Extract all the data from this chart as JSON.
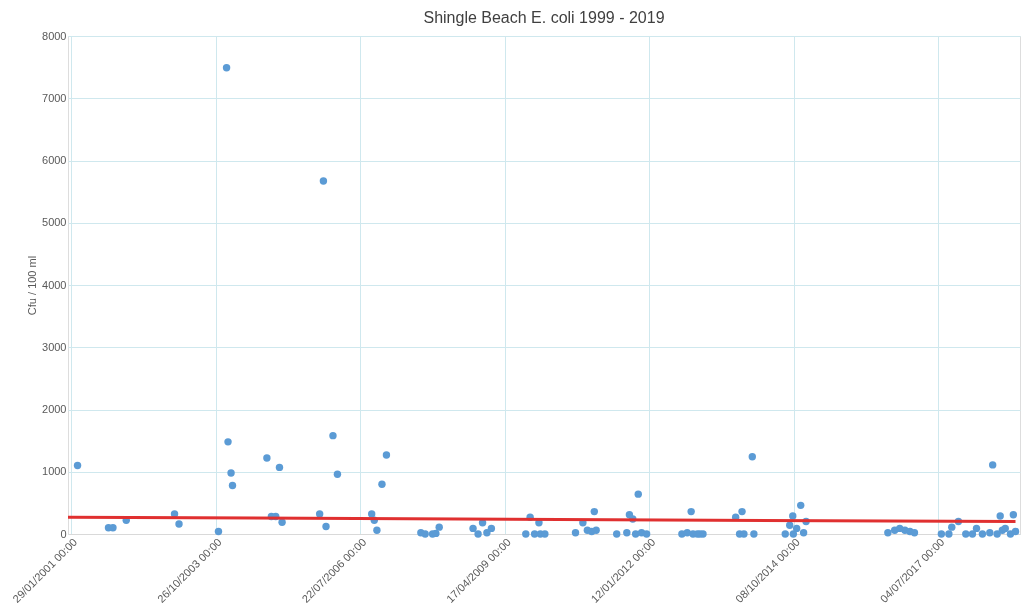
{
  "chart_data": {
    "type": "scatter",
    "title": "Shingle Beach E. coli 1999 - 2019",
    "ylabel": "Cfu / 100 ml",
    "xlim": [
      "2001-01-08",
      "2019-01-20"
    ],
    "xticks": [
      {
        "value": "2001-01-29",
        "label": "29/01/2001 00:00"
      },
      {
        "value": "2003-10-26",
        "label": "26/10/2003 00:00"
      },
      {
        "value": "2006-07-22",
        "label": "22/07/2006 00:00"
      },
      {
        "value": "2009-04-17",
        "label": "17/04/2009 00:00"
      },
      {
        "value": "2012-01-12",
        "label": "12/01/2012 00:00"
      },
      {
        "value": "2014-10-08",
        "label": "08/10/2014 00:00"
      },
      {
        "value": "2017-07-04",
        "label": "04/07/2017 00:00"
      }
    ],
    "ylim": [
      0,
      8000
    ],
    "yticks": [
      0,
      1000,
      2000,
      3000,
      4000,
      5000,
      6000,
      7000,
      8000
    ],
    "grid": true,
    "series": [
      {
        "type": "scatter",
        "color": "#5b9bd5",
        "marker": "circle",
        "x": [
          "2001-03-15",
          "2001-10-15",
          "2001-11-15",
          "2002-02-15",
          "2003-01-15",
          "2003-02-15",
          "2003-11-15",
          "2004-01-10",
          "2004-01-20",
          "2004-02-10",
          "2004-02-20",
          "2004-10-15",
          "2004-11-15",
          "2004-12-15",
          "2005-01-10",
          "2005-01-28",
          "2005-10-15",
          "2005-11-10",
          "2005-11-28",
          "2006-01-15",
          "2006-02-15",
          "2006-10-10",
          "2006-10-28",
          "2006-11-15",
          "2006-12-20",
          "2007-01-20",
          "2007-09-15",
          "2007-10-15",
          "2007-12-05",
          "2007-12-28",
          "2008-01-20",
          "2008-09-10",
          "2008-10-15",
          "2008-11-15",
          "2008-12-15",
          "2009-01-15",
          "2009-09-10",
          "2009-10-10",
          "2009-11-10",
          "2009-12-10",
          "2009-12-20",
          "2010-01-20",
          "2010-08-20",
          "2010-10-10",
          "2010-11-10",
          "2010-12-10",
          "2010-12-28",
          "2011-01-10",
          "2011-06-01",
          "2011-08-10",
          "2011-08-28",
          "2011-09-20",
          "2011-10-10",
          "2011-10-28",
          "2011-11-20",
          "2011-12-25",
          "2012-08-25",
          "2012-10-01",
          "2012-10-28",
          "2012-11-10",
          "2012-12-10",
          "2012-12-28",
          "2013-01-18",
          "2013-09-01",
          "2013-09-28",
          "2013-10-15",
          "2013-10-28",
          "2013-12-25",
          "2014-01-05",
          "2014-08-10",
          "2014-09-10",
          "2014-10-01",
          "2014-10-05",
          "2014-10-28",
          "2014-11-25",
          "2014-12-15",
          "2015-01-01",
          "2016-07-20",
          "2016-09-05",
          "2016-10-10",
          "2016-11-15",
          "2016-12-20",
          "2017-01-20",
          "2017-07-25",
          "2017-09-15",
          "2017-10-05",
          "2017-11-20",
          "2018-01-10",
          "2018-02-25",
          "2018-03-25",
          "2018-05-05",
          "2018-06-25",
          "2018-07-15",
          "2018-08-15",
          "2018-09-05",
          "2018-09-20",
          "2018-10-10",
          "2018-11-15",
          "2018-12-05",
          "2018-12-20"
        ],
        "values": [
          1100,
          100,
          100,
          220,
          320,
          160,
          40,
          7490,
          1480,
          980,
          780,
          1220,
          280,
          280,
          1070,
          190,
          320,
          5670,
          120,
          1580,
          960,
          320,
          220,
          60,
          800,
          1270,
          20,
          0,
          0,
          10,
          110,
          90,
          0,
          180,
          20,
          90,
          0,
          270,
          0,
          180,
          0,
          0,
          20,
          180,
          60,
          40,
          360,
          60,
          0,
          20,
          310,
          240,
          0,
          640,
          20,
          0,
          0,
          20,
          360,
          0,
          0,
          0,
          0,
          270,
          0,
          360,
          0,
          1240,
          0,
          0,
          140,
          290,
          0,
          90,
          460,
          20,
          200,
          20,
          60,
          90,
          60,
          40,
          20,
          0,
          0,
          110,
          200,
          0,
          0,
          90,
          0,
          20,
          1110,
          0,
          290,
          60,
          90,
          0,
          310,
          40
        ]
      },
      {
        "type": "line",
        "color": "#e03030",
        "x": [
          "2001-01-08",
          "2018-12-20"
        ],
        "values": [
          270,
          200
        ],
        "line_style": "solid"
      }
    ]
  }
}
